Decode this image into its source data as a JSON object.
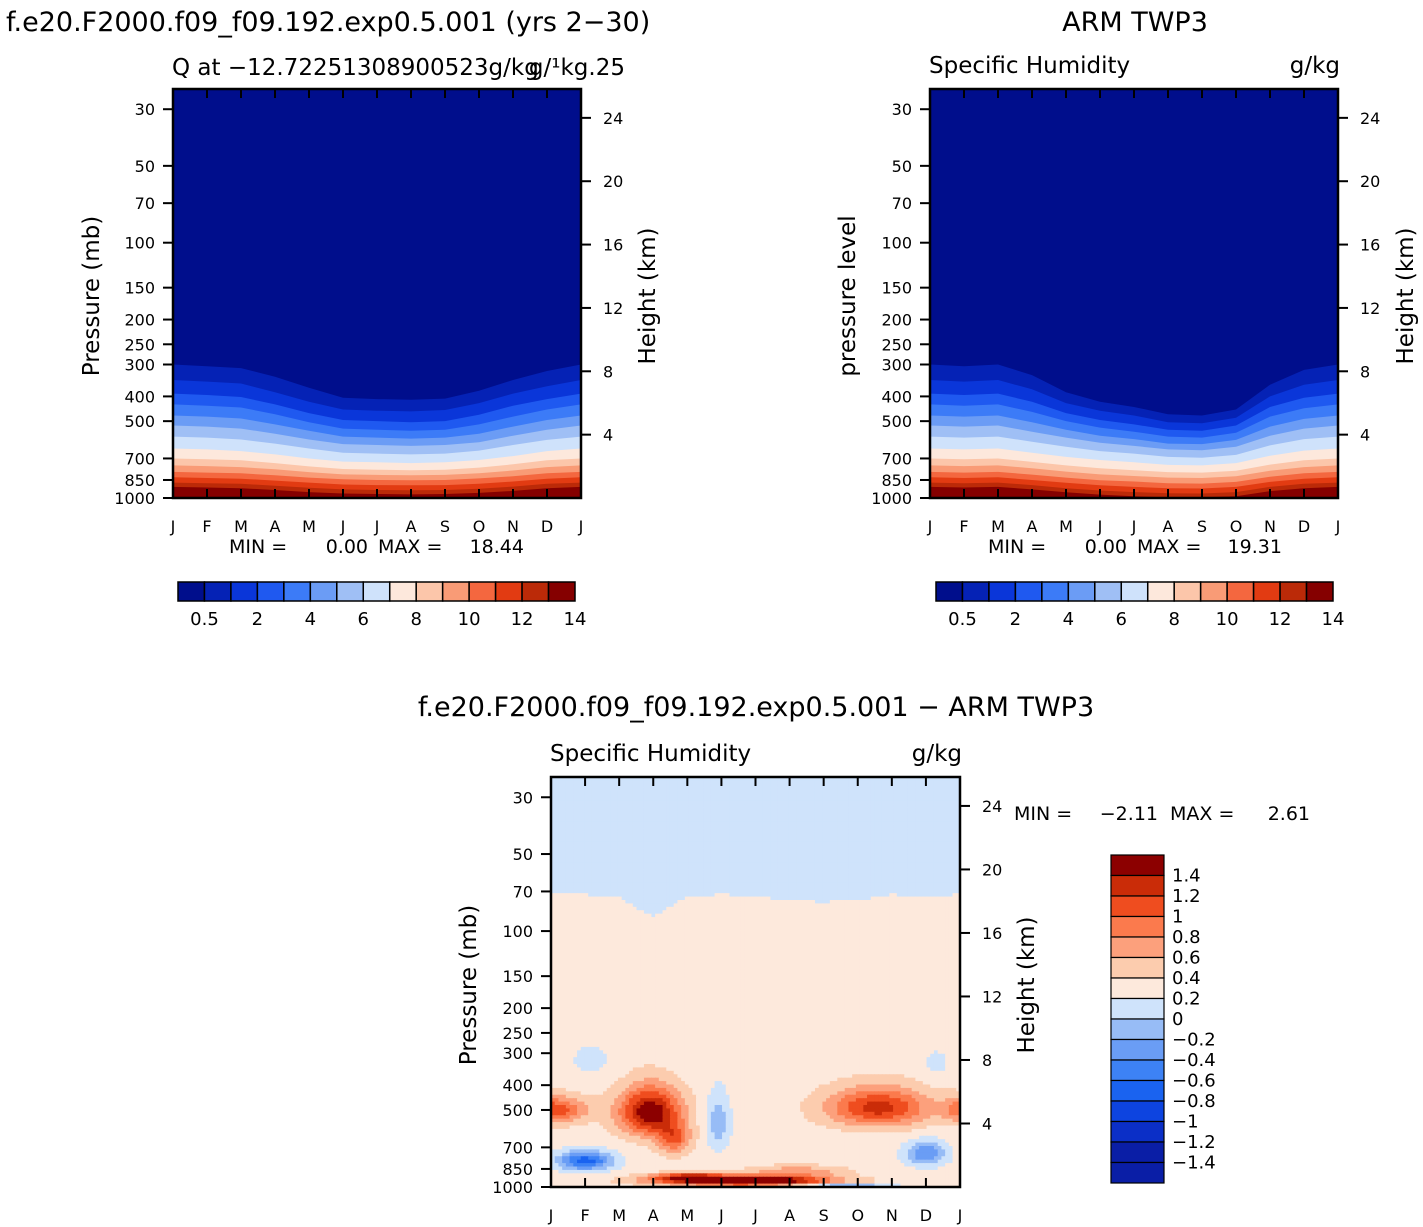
{
  "palettes": {
    "abs": [
      "#000e8c",
      "#0522b5",
      "#0a36d9",
      "#1f59f0",
      "#3c7bf7",
      "#6b9cf5",
      "#9fbff5",
      "#cfe2fb",
      "#fde8dc",
      "#fcc6aa",
      "#f99b76",
      "#f4673f",
      "#e23b12",
      "#bb2a08",
      "#850000"
    ],
    "diff": [
      "#0a1ea6",
      "#0b2fc7",
      "#0d44e0",
      "#1a63f0",
      "#3d82f5",
      "#6a9df5",
      "#97bcf6",
      "#cfe3fb",
      "#fde9dc",
      "#fcccae",
      "#fca07c",
      "#fb7a4d",
      "#ef4d1f",
      "#ca2c08",
      "#8c0000"
    ]
  },
  "chart_data": [
    {
      "id": "model",
      "type": "contour",
      "figure_title": "f.e20.F2000.f09_f09.192.exp0.5.001 (yrs 2−30)",
      "title_left": "Q at −12.72251308900523g/kg",
      "title_right": "g/¹kg.25",
      "ylabel": "Pressure (mb)",
      "ylabel_right": "Height (km)",
      "x_ticks": [
        "J",
        "F",
        "M",
        "A",
        "M",
        "J",
        "J",
        "A",
        "S",
        "O",
        "N",
        "D",
        "J"
      ],
      "y_ticks": [
        30,
        50,
        70,
        100,
        150,
        200,
        250,
        300,
        400,
        500,
        700,
        850,
        1000
      ],
      "ylim": [
        25,
        1000
      ],
      "height_ticks": [
        24,
        20,
        16,
        12,
        8,
        4
      ],
      "stats": {
        "min_label": "MIN =",
        "min": "0.00",
        "max_label": "MAX =",
        "max": "18.44"
      },
      "colorbar_labels": [
        "0.5",
        "2",
        "4",
        "6",
        "8",
        "10",
        "12",
        "14"
      ],
      "contours": [
        {
          "level": 0.5,
          "p": [
            300,
            305,
            310,
            335,
            370,
            405,
            410,
            412,
            408,
            380,
            345,
            318,
            300
          ]
        },
        {
          "level": 1,
          "p": [
            345,
            350,
            356,
            385,
            420,
            450,
            455,
            458,
            452,
            425,
            390,
            365,
            345
          ]
        },
        {
          "level": 2,
          "p": [
            390,
            395,
            402,
            430,
            465,
            495,
            500,
            505,
            500,
            472,
            435,
            410,
            390
          ]
        },
        {
          "level": 3,
          "p": [
            430,
            435,
            442,
            470,
            505,
            535,
            540,
            545,
            540,
            515,
            480,
            450,
            430
          ]
        },
        {
          "level": 4,
          "p": [
            475,
            480,
            488,
            515,
            545,
            575,
            580,
            585,
            580,
            560,
            525,
            495,
            475
          ]
        },
        {
          "level": 5,
          "p": [
            520,
            525,
            535,
            560,
            590,
            615,
            620,
            625,
            620,
            605,
            570,
            540,
            520
          ]
        },
        {
          "level": 6,
          "p": [
            575,
            580,
            590,
            612,
            640,
            665,
            670,
            675,
            670,
            652,
            620,
            592,
            575
          ]
        },
        {
          "level": 7,
          "p": [
            640,
            645,
            655,
            675,
            700,
            720,
            725,
            730,
            725,
            710,
            685,
            655,
            640
          ]
        },
        {
          "level": 8,
          "p": [
            700,
            705,
            712,
            730,
            752,
            770,
            775,
            778,
            775,
            760,
            738,
            712,
            700
          ]
        },
        {
          "level": 9,
          "p": [
            745,
            750,
            757,
            772,
            792,
            808,
            812,
            815,
            812,
            800,
            780,
            757,
            745
          ]
        },
        {
          "level": 10,
          "p": [
            790,
            795,
            800,
            815,
            832,
            845,
            850,
            852,
            850,
            838,
            822,
            800,
            790
          ]
        },
        {
          "level": 11,
          "p": [
            830,
            835,
            840,
            855,
            870,
            885,
            890,
            892,
            890,
            880,
            862,
            840,
            830
          ]
        },
        {
          "level": 12,
          "p": [
            870,
            875,
            880,
            895,
            912,
            925,
            930,
            932,
            930,
            920,
            902,
            880,
            870
          ]
        },
        {
          "level": 13,
          "p": [
            905,
            910,
            915,
            930,
            948,
            960,
            965,
            968,
            965,
            955,
            938,
            915,
            905
          ]
        },
        {
          "level": 14,
          "p": [
            945,
            950,
            958,
            970,
            990,
            1000,
            1000,
            1000,
            1000,
            995,
            978,
            958,
            945
          ]
        }
      ]
    },
    {
      "id": "obs",
      "type": "contour",
      "figure_title": "ARM TWP3",
      "title_left": "Specific Humidity",
      "title_right": "g/kg",
      "ylabel": "pressure level",
      "ylabel_right": "Height (km)",
      "x_ticks": [
        "J",
        "F",
        "M",
        "A",
        "M",
        "J",
        "J",
        "A",
        "S",
        "O",
        "N",
        "D",
        "J"
      ],
      "y_ticks": [
        30,
        50,
        70,
        100,
        150,
        200,
        250,
        300,
        400,
        500,
        700,
        850,
        1000
      ],
      "ylim": [
        25,
        1000
      ],
      "height_ticks": [
        24,
        20,
        16,
        12,
        8,
        4
      ],
      "stats": {
        "min_label": "MIN =",
        "min": "0.00",
        "max_label": "MAX =",
        "max": "19.31"
      },
      "colorbar_labels": [
        "0.5",
        "2",
        "4",
        "6",
        "8",
        "10",
        "12",
        "14"
      ],
      "contours": [
        {
          "level": 0.5,
          "p": [
            300,
            305,
            300,
            330,
            385,
            420,
            440,
            470,
            475,
            450,
            360,
            315,
            300
          ]
        },
        {
          "level": 1,
          "p": [
            345,
            350,
            345,
            375,
            425,
            455,
            475,
            505,
            510,
            485,
            400,
            360,
            345
          ]
        },
        {
          "level": 2,
          "p": [
            390,
            395,
            390,
            420,
            465,
            495,
            515,
            540,
            545,
            520,
            440,
            405,
            390
          ]
        },
        {
          "level": 3,
          "p": [
            430,
            435,
            430,
            460,
            500,
            530,
            550,
            575,
            580,
            555,
            480,
            445,
            430
          ]
        },
        {
          "level": 4,
          "p": [
            475,
            480,
            475,
            505,
            540,
            570,
            588,
            612,
            615,
            592,
            525,
            490,
            475
          ]
        },
        {
          "level": 5,
          "p": [
            520,
            525,
            520,
            550,
            580,
            608,
            625,
            645,
            650,
            630,
            570,
            535,
            520
          ]
        },
        {
          "level": 6,
          "p": [
            575,
            580,
            575,
            602,
            630,
            655,
            670,
            690,
            695,
            678,
            622,
            588,
            575
          ]
        },
        {
          "level": 7,
          "p": [
            640,
            645,
            640,
            665,
            690,
            710,
            725,
            742,
            745,
            730,
            683,
            652,
            640
          ]
        },
        {
          "level": 8,
          "p": [
            700,
            705,
            700,
            722,
            745,
            765,
            778,
            792,
            795,
            782,
            740,
            712,
            700
          ]
        },
        {
          "level": 9,
          "p": [
            745,
            750,
            745,
            765,
            788,
            808,
            820,
            832,
            835,
            822,
            782,
            757,
            745
          ]
        },
        {
          "level": 10,
          "p": [
            790,
            795,
            790,
            810,
            832,
            852,
            862,
            875,
            878,
            865,
            825,
            800,
            790
          ]
        },
        {
          "level": 11,
          "p": [
            830,
            835,
            830,
            850,
            872,
            892,
            905,
            915,
            918,
            905,
            865,
            840,
            830
          ]
        },
        {
          "level": 12,
          "p": [
            870,
            875,
            870,
            890,
            915,
            935,
            948,
            958,
            960,
            948,
            905,
            880,
            870
          ]
        },
        {
          "level": 13,
          "p": [
            905,
            910,
            905,
            925,
            950,
            970,
            985,
            995,
            995,
            985,
            940,
            915,
            905
          ]
        },
        {
          "level": 14,
          "p": [
            945,
            950,
            945,
            965,
            990,
            1000,
            1000,
            1000,
            1000,
            1000,
            980,
            955,
            945
          ]
        }
      ]
    },
    {
      "id": "diff",
      "type": "contour",
      "figure_title": "f.e20.F2000.f09_f09.192.exp0.5.001 − ARM TWP3",
      "title_left": "Specific Humidity",
      "title_right": "g/kg",
      "ylabel": "Pressure (mb)",
      "ylabel_right": "Height (km)",
      "x_ticks": [
        "J",
        "F",
        "M",
        "A",
        "M",
        "J",
        "J",
        "A",
        "S",
        "O",
        "N",
        "D",
        "J"
      ],
      "y_ticks": [
        30,
        50,
        70,
        100,
        150,
        200,
        250,
        300,
        400,
        500,
        700,
        850,
        1000
      ],
      "ylim": [
        25,
        1000
      ],
      "height_ticks": [
        24,
        20,
        16,
        12,
        8,
        4
      ],
      "stats": {
        "min_label": "MIN =",
        "min": "−2.11",
        "max_label": "MAX =",
        "max": "2.61"
      },
      "colorbar_labels": [
        "1.4",
        "1.2",
        "1",
        "0.8",
        "0.6",
        "0.4",
        "0.2",
        "0",
        "−0.2",
        "−0.4",
        "−0.6",
        "−0.8",
        "−1",
        "−1.2",
        "−1.4"
      ],
      "neutral_boundary_p": [
        72,
        72,
        74,
        88,
        73,
        72,
        73,
        76,
        77,
        76,
        72,
        73,
        72
      ],
      "blobs": [
        {
          "month": 0.0,
          "p": 500,
          "dm": 1.0,
          "dp": 60,
          "value": 0.9
        },
        {
          "month": 2.9,
          "p": 510,
          "dm": 0.9,
          "dp": 110,
          "value": 1.3
        },
        {
          "month": 3.6,
          "p": 650,
          "dm": 0.5,
          "dp": 90,
          "value": 0.7
        },
        {
          "month": 9.6,
          "p": 490,
          "dm": 1.5,
          "dp": 85,
          "value": 1.0
        },
        {
          "month": 12.0,
          "p": 500,
          "dm": 0.5,
          "dp": 55,
          "value": 0.6
        },
        {
          "month": 4.9,
          "p": 560,
          "dm": 0.35,
          "dp": 140,
          "value": -0.45
        },
        {
          "month": 1.2,
          "p": 320,
          "dm": 0.8,
          "dp": 60,
          "value": -0.15
        },
        {
          "month": 11.3,
          "p": 330,
          "dm": 0.5,
          "dp": 55,
          "value": -0.15
        },
        {
          "month": 1.0,
          "p": 790,
          "dm": 0.8,
          "dp": 70,
          "value": -1.0
        },
        {
          "month": 11.0,
          "p": 740,
          "dm": 0.6,
          "dp": 80,
          "value": -0.7
        },
        {
          "month": 5.6,
          "p": 945,
          "dm": 2.3,
          "dp": 40,
          "value": 1.9
        },
        {
          "month": 4.0,
          "p": 910,
          "dm": 1.0,
          "dp": 30,
          "value": 0.8
        },
        {
          "month": 7.2,
          "p": 870,
          "dm": 1.4,
          "dp": 45,
          "value": 0.45
        },
        {
          "month": 8.6,
          "p": 990,
          "dm": 1.3,
          "dp": 18,
          "value": -0.6
        }
      ]
    }
  ]
}
